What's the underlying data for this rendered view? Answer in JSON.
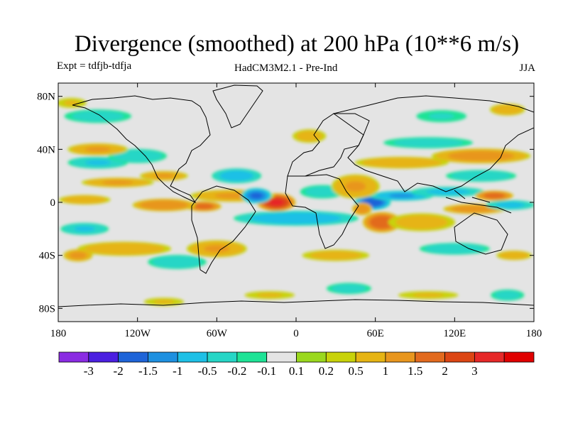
{
  "title": "Divergence (smoothed) at 200 hPa (10**6 m/s)",
  "experiment": "Expt = tdfjb-tdfja",
  "model": "HadCM3M2.1 - Pre-Ind",
  "season": "JJA",
  "lat_ticks": [
    {
      "value": 80,
      "label": "80N"
    },
    {
      "value": 40,
      "label": "40N"
    },
    {
      "value": 0,
      "label": "0"
    },
    {
      "value": -40,
      "label": "40S"
    },
    {
      "value": -80,
      "label": "80S"
    }
  ],
  "lon_ticks": [
    {
      "value": -180,
      "label": "180"
    },
    {
      "value": -120,
      "label": "120W"
    },
    {
      "value": -60,
      "label": "60W"
    },
    {
      "value": 0,
      "label": "0"
    },
    {
      "value": 60,
      "label": "60E"
    },
    {
      "value": 120,
      "label": "120E"
    },
    {
      "value": 180,
      "label": "180"
    }
  ],
  "colorbar": {
    "colors": [
      "#8a2be2",
      "#4b1fe0",
      "#1e64d8",
      "#1e90e0",
      "#1ec0e6",
      "#26d6c6",
      "#1ee396",
      "#e4e4e4",
      "#9ad81e",
      "#c8d20a",
      "#e6b414",
      "#e8961e",
      "#e26a1e",
      "#dc4614",
      "#e62828",
      "#e00000"
    ],
    "labels": [
      "-3",
      "-2",
      "-1.5",
      "-1",
      "-0.5",
      "-0.2",
      "-0.1",
      "0.1",
      "0.2",
      "0.5",
      "1",
      "1.5",
      "2",
      "3"
    ]
  },
  "blobs": [
    {
      "lon": -15,
      "lat": 0,
      "rx": 15,
      "ry": 7,
      "v": 2
    },
    {
      "lon": -48,
      "lat": 5,
      "rx": 35,
      "ry": 5,
      "v": 0.5
    },
    {
      "lon": -70,
      "lat": -3,
      "rx": 14,
      "ry": 4,
      "v": 1.2
    },
    {
      "lon": -100,
      "lat": -2,
      "rx": 25,
      "ry": 5,
      "v": 0.9
    },
    {
      "lon": -160,
      "lat": 2,
      "rx": 22,
      "ry": 4,
      "v": 0.4
    },
    {
      "lon": -135,
      "lat": 15,
      "rx": 30,
      "ry": 4,
      "v": 0.5
    },
    {
      "lon": -100,
      "lat": 20,
      "rx": 20,
      "ry": 4,
      "v": 0.5
    },
    {
      "lon": -30,
      "lat": 5,
      "rx": 12,
      "ry": 6,
      "v": -1.5
    },
    {
      "lon": -45,
      "lat": 20,
      "rx": 20,
      "ry": 6,
      "v": -0.7
    },
    {
      "lon": 0,
      "lat": -12,
      "rx": 50,
      "ry": 6,
      "v": -0.8
    },
    {
      "lon": 20,
      "lat": 8,
      "rx": 20,
      "ry": 6,
      "v": -0.3
    },
    {
      "lon": 58,
      "lat": 0,
      "rx": 14,
      "ry": 6,
      "v": -1.8
    },
    {
      "lon": 80,
      "lat": 5,
      "rx": 25,
      "ry": 4,
      "v": -1.0
    },
    {
      "lon": 115,
      "lat": 8,
      "rx": 30,
      "ry": 4,
      "v": -0.6
    },
    {
      "lon": 135,
      "lat": -5,
      "rx": 25,
      "ry": 4,
      "v": 0.8
    },
    {
      "lon": 150,
      "lat": 5,
      "rx": 15,
      "ry": 4,
      "v": 1.2
    },
    {
      "lon": 162,
      "lat": -2,
      "rx": 20,
      "ry": 4,
      "v": -0.6
    },
    {
      "lon": 65,
      "lat": -15,
      "rx": 15,
      "ry": 8,
      "v": 1.4
    },
    {
      "lon": 50,
      "lat": -5,
      "rx": 8,
      "ry": 5,
      "v": 0.8
    },
    {
      "lon": 95,
      "lat": -15,
      "rx": 30,
      "ry": 8,
      "v": 0.3
    },
    {
      "lon": 45,
      "lat": 12,
      "rx": 20,
      "ry": 10,
      "v": 0.5
    },
    {
      "lon": 80,
      "lat": 30,
      "rx": 40,
      "ry": 5,
      "v": 0.4
    },
    {
      "lon": 140,
      "lat": 35,
      "rx": 40,
      "ry": 6,
      "v": 0.7
    },
    {
      "lon": 140,
      "lat": 20,
      "rx": 30,
      "ry": 5,
      "v": -0.4
    },
    {
      "lon": 100,
      "lat": 45,
      "rx": 40,
      "ry": 5,
      "v": -0.3
    },
    {
      "lon": -150,
      "lat": 30,
      "rx": 25,
      "ry": 5,
      "v": -0.5
    },
    {
      "lon": -120,
      "lat": 35,
      "rx": 25,
      "ry": 6,
      "v": -0.4
    },
    {
      "lon": -150,
      "lat": 40,
      "rx": 25,
      "ry": 5,
      "v": 0.5
    },
    {
      "lon": -160,
      "lat": -20,
      "rx": 20,
      "ry": 5,
      "v": -0.5
    },
    {
      "lon": -130,
      "lat": -35,
      "rx": 40,
      "ry": 6,
      "v": 0.4
    },
    {
      "lon": -165,
      "lat": -40,
      "rx": 12,
      "ry": 5,
      "v": 0.6
    },
    {
      "lon": -90,
      "lat": -45,
      "rx": 25,
      "ry": 6,
      "v": -0.4
    },
    {
      "lon": -60,
      "lat": -35,
      "rx": 25,
      "ry": 7,
      "v": 0.5
    },
    {
      "lon": 30,
      "lat": -40,
      "rx": 30,
      "ry": 5,
      "v": 0.3
    },
    {
      "lon": 120,
      "lat": -35,
      "rx": 30,
      "ry": 5,
      "v": -0.4
    },
    {
      "lon": 165,
      "lat": -40,
      "rx": 15,
      "ry": 4,
      "v": 0.4
    },
    {
      "lon": 40,
      "lat": -65,
      "rx": 20,
      "ry": 5,
      "v": -0.3
    },
    {
      "lon": -20,
      "lat": -70,
      "rx": 25,
      "ry": 4,
      "v": 0.2
    },
    {
      "lon": 100,
      "lat": -70,
      "rx": 30,
      "ry": 4,
      "v": 0.2
    },
    {
      "lon": 160,
      "lat": -70,
      "rx": 15,
      "ry": 5,
      "v": -0.3
    },
    {
      "lon": -100,
      "lat": -75,
      "rx": 20,
      "ry": 4,
      "v": 0.2
    },
    {
      "lon": -150,
      "lat": 65,
      "rx": 30,
      "ry": 6,
      "v": -0.3
    },
    {
      "lon": 10,
      "lat": 50,
      "rx": 15,
      "ry": 6,
      "v": 0.3
    },
    {
      "lon": 110,
      "lat": 65,
      "rx": 25,
      "ry": 6,
      "v": -0.2
    },
    {
      "lon": -170,
      "lat": 75,
      "rx": 15,
      "ry": 5,
      "v": 0.2
    },
    {
      "lon": 160,
      "lat": 70,
      "rx": 15,
      "ry": 5,
      "v": 0.4
    }
  ]
}
